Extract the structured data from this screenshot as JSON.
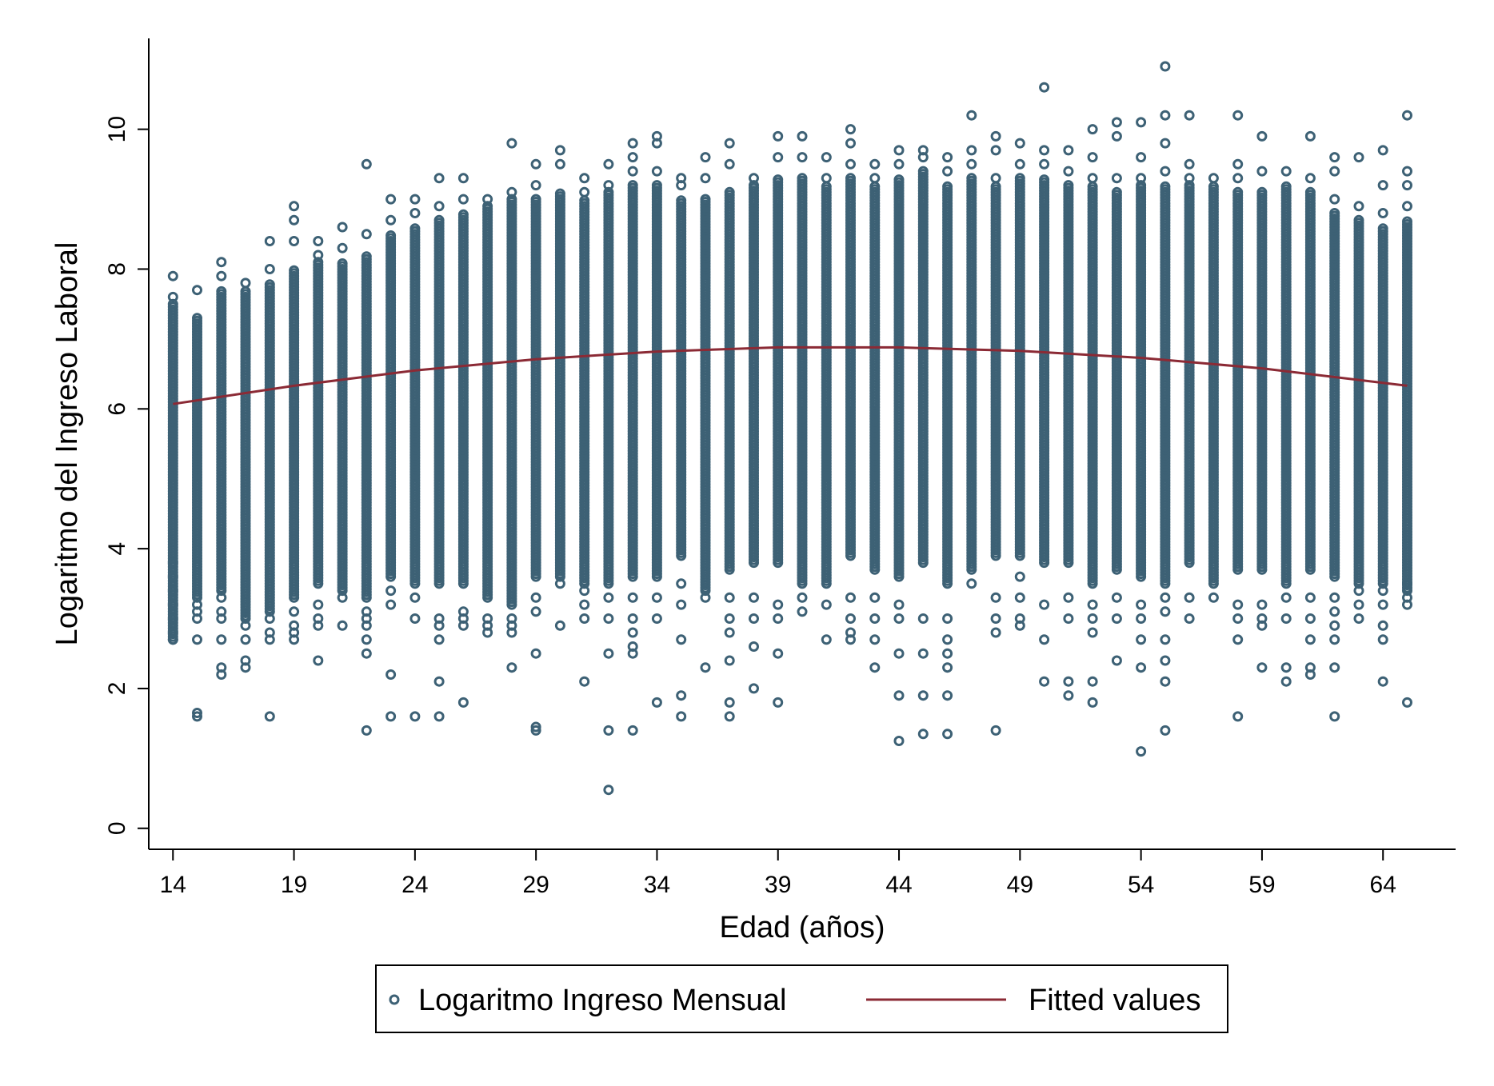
{
  "chart_data": {
    "type": "scatter",
    "xlabel": "Edad (años)",
    "ylabel": "Logaritmo del Ingreso Laboral",
    "xlim": [
      13,
      67
    ],
    "ylim": [
      -0.3,
      11.3
    ],
    "x_ticks": [
      14,
      19,
      24,
      29,
      34,
      39,
      44,
      49,
      54,
      59,
      64
    ],
    "y_ticks": [
      0,
      2,
      4,
      6,
      8,
      10
    ],
    "grid": false,
    "legend_position": "bottom",
    "colors": {
      "scatter": "#3d6175",
      "fit": "#8b2a35"
    },
    "series": [
      {
        "name": "Logaritmo Ingreso Mensual",
        "kind": "scatter",
        "x_range": [
          14,
          65
        ],
        "per_age": [
          {
            "age": 14,
            "dense": [
              2.7,
              7.5
            ],
            "outliers": [
              2.7,
              2.8,
              3.0,
              3.2,
              3.4,
              3.6,
              3.8,
              7.6,
              7.9
            ]
          },
          {
            "age": 15,
            "dense": [
              3.3,
              7.3
            ],
            "outliers": [
              1.6,
              1.65,
              2.7,
              3.0,
              3.1,
              3.2,
              7.7
            ]
          },
          {
            "age": 16,
            "dense": [
              3.4,
              7.7
            ],
            "outliers": [
              2.2,
              2.3,
              2.7,
              3.0,
              3.1,
              3.3,
              7.9,
              8.1
            ]
          },
          {
            "age": 17,
            "dense": [
              3.0,
              7.7
            ],
            "outliers": [
              2.3,
              2.4,
              2.7,
              2.9,
              7.8
            ]
          },
          {
            "age": 18,
            "dense": [
              3.1,
              7.8
            ],
            "outliers": [
              1.6,
              2.7,
              2.8,
              3.0,
              8.0,
              8.4
            ]
          },
          {
            "age": 19,
            "dense": [
              3.3,
              8.0
            ],
            "outliers": [
              2.7,
              2.8,
              2.9,
              3.1,
              8.4,
              8.7,
              8.9
            ]
          },
          {
            "age": 20,
            "dense": [
              3.5,
              8.1
            ],
            "outliers": [
              2.4,
              2.9,
              3.0,
              3.2,
              8.2,
              8.4
            ]
          },
          {
            "age": 21,
            "dense": [
              3.4,
              8.1
            ],
            "outliers": [
              2.9,
              3.3,
              8.3,
              8.6
            ]
          },
          {
            "age": 22,
            "dense": [
              3.3,
              8.2
            ],
            "outliers": [
              1.4,
              2.5,
              2.7,
              2.9,
              3.0,
              3.1,
              8.5,
              9.5
            ]
          },
          {
            "age": 23,
            "dense": [
              3.6,
              8.5
            ],
            "outliers": [
              1.6,
              2.2,
              3.2,
              3.4,
              8.7,
              9.0
            ]
          },
          {
            "age": 24,
            "dense": [
              3.5,
              8.6
            ],
            "outliers": [
              1.6,
              3.0,
              3.3,
              8.8,
              9.0
            ]
          },
          {
            "age": 25,
            "dense": [
              3.5,
              8.7
            ],
            "outliers": [
              1.6,
              2.1,
              2.7,
              2.9,
              3.0,
              8.9,
              9.3
            ]
          },
          {
            "age": 26,
            "dense": [
              3.5,
              8.8
            ],
            "outliers": [
              1.8,
              2.9,
              3.0,
              3.1,
              9.0,
              9.3
            ]
          },
          {
            "age": 27,
            "dense": [
              3.3,
              8.9
            ],
            "outliers": [
              2.8,
              2.9,
              3.0,
              9.0
            ]
          },
          {
            "age": 28,
            "dense": [
              3.2,
              9.0
            ],
            "outliers": [
              2.3,
              2.8,
              2.9,
              3.0,
              9.1,
              9.8
            ]
          },
          {
            "age": 29,
            "dense": [
              3.6,
              9.0
            ],
            "outliers": [
              1.4,
              1.45,
              2.5,
              3.1,
              3.3,
              9.2,
              9.5
            ]
          },
          {
            "age": 30,
            "dense": [
              3.6,
              9.1
            ],
            "outliers": [
              2.9,
              3.5,
              9.5,
              9.7
            ]
          },
          {
            "age": 31,
            "dense": [
              3.5,
              9.0
            ],
            "outliers": [
              2.1,
              3.0,
              3.2,
              3.4,
              9.1,
              9.3
            ]
          },
          {
            "age": 32,
            "dense": [
              3.5,
              9.1
            ],
            "outliers": [
              0.55,
              1.4,
              2.5,
              3.0,
              3.3,
              9.2,
              9.5
            ]
          },
          {
            "age": 33,
            "dense": [
              3.6,
              9.2
            ],
            "outliers": [
              1.4,
              2.5,
              2.6,
              2.8,
              3.0,
              3.3,
              9.4,
              9.6,
              9.8
            ]
          },
          {
            "age": 34,
            "dense": [
              3.6,
              9.2
            ],
            "outliers": [
              1.8,
              3.0,
              3.3,
              9.4,
              9.8,
              9.9
            ]
          },
          {
            "age": 35,
            "dense": [
              3.9,
              9.0
            ],
            "outliers": [
              1.6,
              1.9,
              2.7,
              3.2,
              3.5,
              9.2,
              9.3
            ]
          },
          {
            "age": 36,
            "dense": [
              3.4,
              9.0
            ],
            "outliers": [
              2.3,
              3.3,
              9.3,
              9.6
            ]
          },
          {
            "age": 37,
            "dense": [
              3.7,
              9.1
            ],
            "outliers": [
              1.6,
              1.8,
              2.4,
              2.8,
              3.0,
              3.3,
              9.5,
              9.8
            ]
          },
          {
            "age": 38,
            "dense": [
              3.8,
              9.2
            ],
            "outliers": [
              2.0,
              2.6,
              3.0,
              3.3,
              9.3
            ]
          },
          {
            "age": 39,
            "dense": [
              3.8,
              9.3
            ],
            "outliers": [
              1.8,
              2.5,
              3.0,
              3.2,
              9.6,
              9.9
            ]
          },
          {
            "age": 40,
            "dense": [
              3.5,
              9.3
            ],
            "outliers": [
              3.1,
              3.3,
              9.6,
              9.9
            ]
          },
          {
            "age": 41,
            "dense": [
              3.5,
              9.2
            ],
            "outliers": [
              2.7,
              3.2,
              9.3,
              9.6
            ]
          },
          {
            "age": 42,
            "dense": [
              3.9,
              9.3
            ],
            "outliers": [
              2.7,
              2.8,
              3.0,
              3.3,
              9.5,
              9.8,
              10.0
            ]
          },
          {
            "age": 43,
            "dense": [
              3.7,
              9.2
            ],
            "outliers": [
              2.3,
              2.7,
              3.0,
              3.3,
              9.3,
              9.5
            ]
          },
          {
            "age": 44,
            "dense": [
              3.6,
              9.3
            ],
            "outliers": [
              1.25,
              1.9,
              2.5,
              3.0,
              3.2,
              9.5,
              9.7
            ]
          },
          {
            "age": 45,
            "dense": [
              3.8,
              9.4
            ],
            "outliers": [
              1.35,
              1.9,
              2.5,
              3.0,
              9.6,
              9.7
            ]
          },
          {
            "age": 46,
            "dense": [
              3.5,
              9.2
            ],
            "outliers": [
              1.35,
              1.9,
              2.3,
              2.5,
              2.7,
              3.0,
              9.4,
              9.6
            ]
          },
          {
            "age": 47,
            "dense": [
              3.7,
              9.3
            ],
            "outliers": [
              3.5,
              9.5,
              9.7,
              10.2
            ]
          },
          {
            "age": 48,
            "dense": [
              3.9,
              9.2
            ],
            "outliers": [
              1.4,
              2.8,
              3.0,
              3.3,
              9.3,
              9.7,
              9.9
            ]
          },
          {
            "age": 49,
            "dense": [
              3.9,
              9.3
            ],
            "outliers": [
              2.9,
              3.0,
              3.3,
              3.6,
              9.5,
              9.8
            ]
          },
          {
            "age": 50,
            "dense": [
              3.8,
              9.3
            ],
            "outliers": [
              2.1,
              2.7,
              3.2,
              9.5,
              9.7,
              10.6
            ]
          },
          {
            "age": 51,
            "dense": [
              3.8,
              9.2
            ],
            "outliers": [
              1.9,
              2.1,
              3.0,
              3.3,
              9.4,
              9.7
            ]
          },
          {
            "age": 52,
            "dense": [
              3.5,
              9.2
            ],
            "outliers": [
              1.8,
              2.1,
              2.8,
              3.0,
              3.2,
              9.3,
              9.6,
              10.0
            ]
          },
          {
            "age": 53,
            "dense": [
              3.7,
              9.1
            ],
            "outliers": [
              2.4,
              3.0,
              3.3,
              9.3,
              9.9,
              10.1
            ]
          },
          {
            "age": 54,
            "dense": [
              3.6,
              9.2
            ],
            "outliers": [
              1.1,
              2.3,
              2.7,
              3.0,
              3.2,
              9.3,
              9.6,
              10.1
            ]
          },
          {
            "age": 55,
            "dense": [
              3.5,
              9.2
            ],
            "outliers": [
              1.4,
              2.1,
              2.4,
              2.7,
              3.1,
              3.3,
              9.4,
              9.8,
              10.2,
              10.9
            ]
          },
          {
            "age": 56,
            "dense": [
              3.8,
              9.2
            ],
            "outliers": [
              3.0,
              3.3,
              9.3,
              9.5,
              10.2
            ]
          },
          {
            "age": 57,
            "dense": [
              3.5,
              9.2
            ],
            "outliers": [
              3.3,
              9.3
            ]
          },
          {
            "age": 58,
            "dense": [
              3.7,
              9.1
            ],
            "outliers": [
              1.6,
              2.7,
              3.0,
              3.2,
              9.3,
              9.5,
              10.2
            ]
          },
          {
            "age": 59,
            "dense": [
              3.7,
              9.1
            ],
            "outliers": [
              2.3,
              2.9,
              3.0,
              3.2,
              9.4,
              9.9
            ]
          },
          {
            "age": 60,
            "dense": [
              3.5,
              9.2
            ],
            "outliers": [
              2.1,
              2.3,
              3.0,
              3.3,
              9.4
            ]
          },
          {
            "age": 61,
            "dense": [
              3.7,
              9.1
            ],
            "outliers": [
              2.2,
              2.3,
              2.7,
              3.0,
              3.3,
              9.3,
              9.9
            ]
          },
          {
            "age": 62,
            "dense": [
              3.6,
              8.8
            ],
            "outliers": [
              1.6,
              2.3,
              2.7,
              2.9,
              3.1,
              3.3,
              9.0,
              9.4,
              9.6
            ]
          },
          {
            "age": 63,
            "dense": [
              3.5,
              8.7
            ],
            "outliers": [
              3.0,
              3.2,
              3.4,
              8.9,
              9.6
            ]
          },
          {
            "age": 64,
            "dense": [
              3.5,
              8.6
            ],
            "outliers": [
              2.1,
              2.7,
              2.9,
              3.2,
              3.4,
              8.8,
              9.2,
              9.7
            ]
          },
          {
            "age": 65,
            "dense": [
              3.4,
              8.7
            ],
            "outliers": [
              1.8,
              3.2,
              3.3,
              3.5,
              8.9,
              9.2,
              9.4,
              10.2
            ]
          }
        ]
      },
      {
        "name": "Fitted values",
        "kind": "line",
        "x": [
          14,
          19,
          24,
          29,
          34,
          39,
          44,
          49,
          54,
          59,
          65
        ],
        "y": [
          6.07,
          6.33,
          6.55,
          6.71,
          6.82,
          6.88,
          6.88,
          6.83,
          6.73,
          6.58,
          6.33
        ]
      }
    ]
  }
}
